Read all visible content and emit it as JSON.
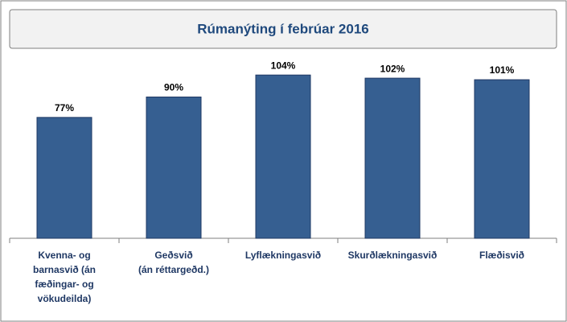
{
  "chart_data": {
    "type": "bar",
    "title": "Rúmanýting í febrúar 2016",
    "categories": [
      "Kvenna- og\nbarnasvið  (án\nfæðingar- og\nvökudeilda)",
      "Geðsvið\n(án réttargeðd.)",
      "Lyflækningasvið",
      "Skurðlækningasvið",
      "Flæðisvið"
    ],
    "values": [
      77,
      90,
      104,
      102,
      101
    ],
    "value_labels": [
      "77%",
      "90%",
      "104%",
      "102%",
      "101%"
    ],
    "color": "#365f91",
    "ylim": [
      0,
      120
    ]
  }
}
